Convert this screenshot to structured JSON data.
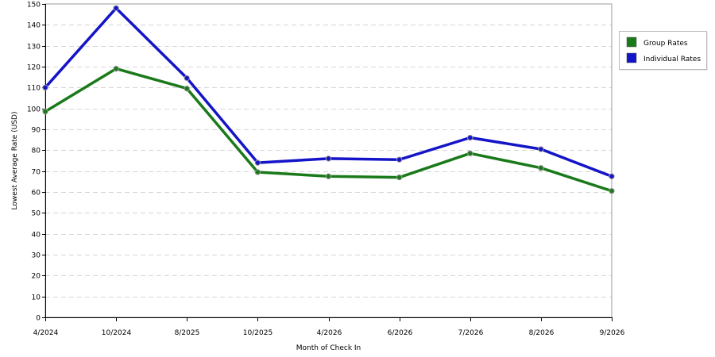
{
  "chart_data": {
    "type": "line",
    "title": "",
    "xlabel": "Month of Check In",
    "ylabel": "Lowest Average Rate (USD)",
    "categories": [
      "4/2024",
      "10/2024",
      "8/2025",
      "10/2025",
      "4/2026",
      "6/2026",
      "7/2026",
      "8/2026",
      "9/2026"
    ],
    "ylim": [
      0,
      150
    ],
    "yticks": [
      "0",
      "10",
      "20",
      "30",
      "40",
      "50",
      "60",
      "70",
      "80",
      "90",
      "100",
      "110",
      "120",
      "130",
      "140",
      "150"
    ],
    "grid": true,
    "legend_position": "right",
    "series": [
      {
        "name": "Group Rates",
        "color": "#1a7a1a",
        "values": [
          98.5,
          119,
          109.5,
          69.5,
          67.5,
          67,
          78.5,
          71.5,
          60.5
        ]
      },
      {
        "name": "Individual Rates",
        "color": "#1414c8",
        "values": [
          110,
          148,
          114.5,
          74,
          76,
          75.5,
          86,
          80.5,
          67.5
        ]
      }
    ]
  }
}
